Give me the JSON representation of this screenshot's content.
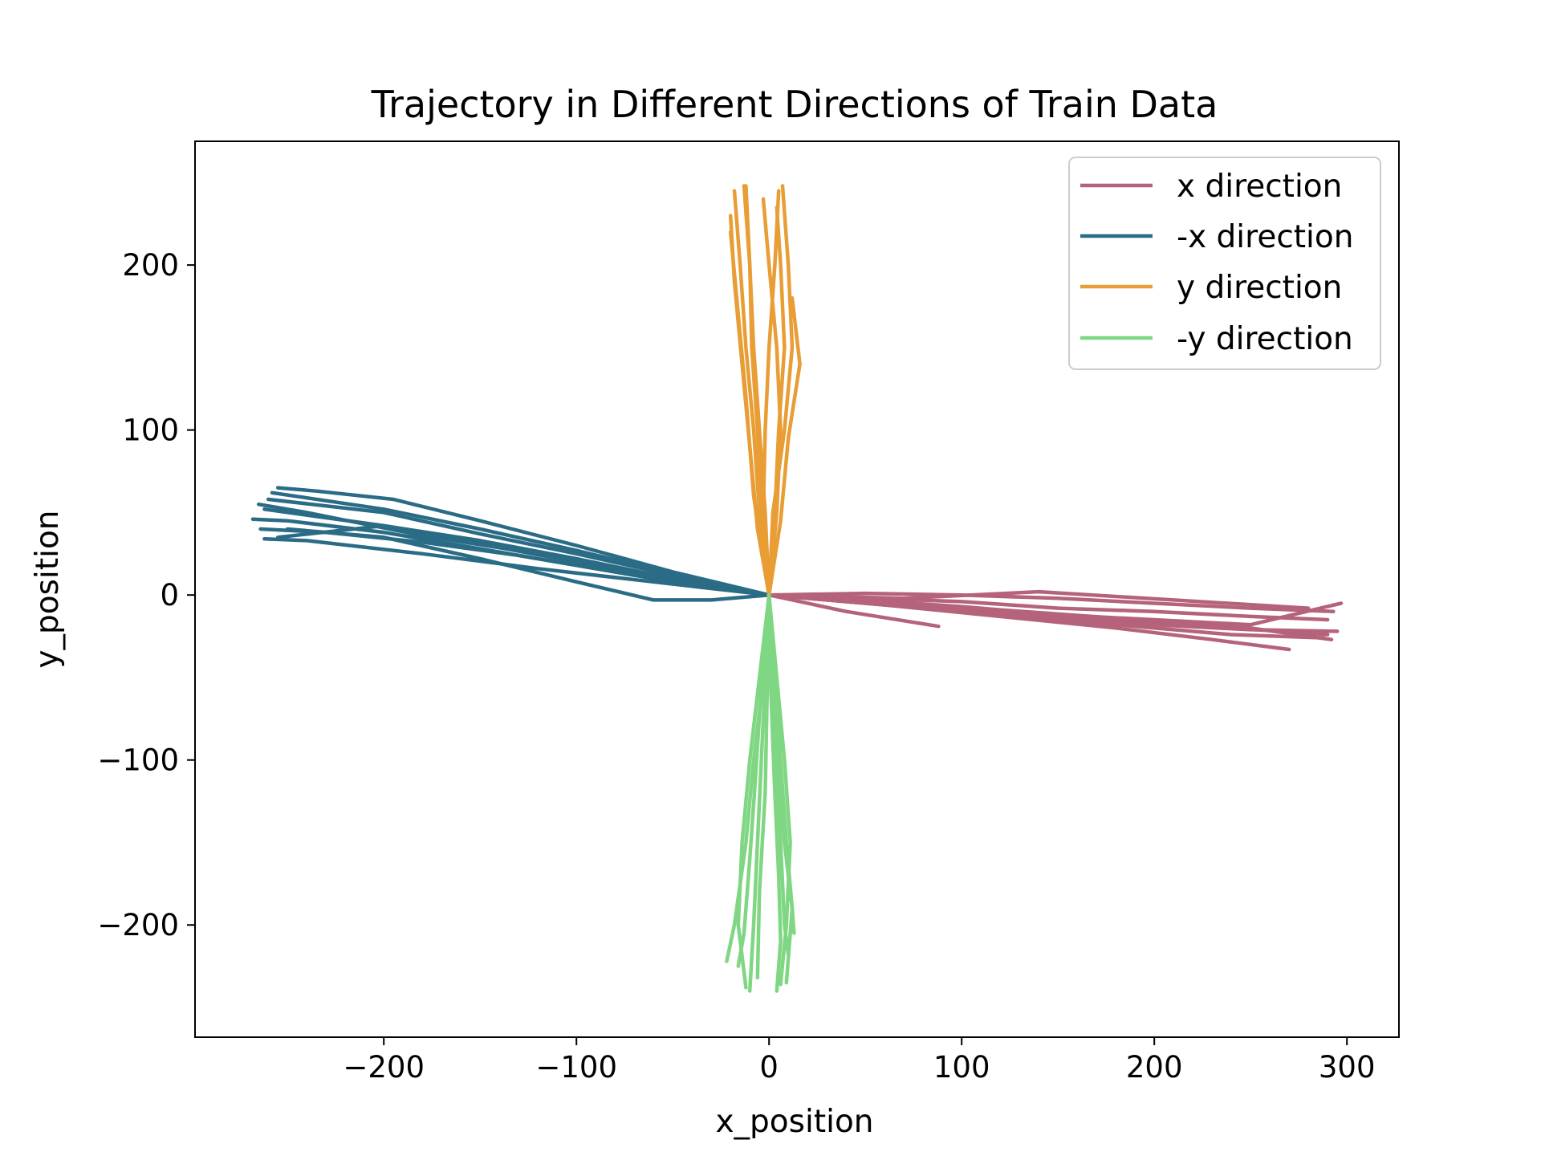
{
  "chart_data": {
    "type": "line",
    "title": "Trajectory in Different Directions of Train Data",
    "xlabel": "x_position",
    "ylabel": "y_position",
    "xlim": [
      -298,
      327
    ],
    "ylim": [
      -268,
      275
    ],
    "xticks": [
      -200,
      -100,
      0,
      100,
      200,
      300
    ],
    "yticks": [
      -200,
      -100,
      0,
      100,
      200
    ],
    "xtick_labels": [
      "−200",
      "−100",
      "0",
      "100",
      "200",
      "300"
    ],
    "ytick_labels": [
      "−200",
      "−100",
      "0",
      "100",
      "200"
    ],
    "grid": false,
    "legend_position": "top-right",
    "series": [
      {
        "name": "x direction",
        "color": "#b5637a",
        "trajectories": [
          {
            "x": [
              0,
              50,
              100,
              150,
              200,
              250,
              297
            ],
            "y": [
              0,
              -3,
              -7,
              -12,
              -15,
              -18,
              -5
            ]
          },
          {
            "x": [
              0,
              50,
              100,
              150,
              200,
              250,
              295
            ],
            "y": [
              0,
              -5,
              -10,
              -14,
              -18,
              -21,
              -22
            ]
          },
          {
            "x": [
              0,
              50,
              100,
              150,
              200,
              250,
              292
            ],
            "y": [
              0,
              -4,
              -8,
              -13,
              -17,
              -20,
              -27
            ]
          },
          {
            "x": [
              0,
              60,
              120,
              180,
              240,
              288
            ],
            "y": [
              0,
              -6,
              -12,
              -18,
              -24,
              -26
            ]
          },
          {
            "x": [
              0,
              50,
              100,
              150,
              200,
              250,
              293
            ],
            "y": [
              0,
              1,
              0,
              -2,
              -5,
              -8,
              -10
            ]
          },
          {
            "x": [
              0,
              60,
              120,
              180,
              230,
              270
            ],
            "y": [
              0,
              -6,
              -13,
              -20,
              -27,
              -33
            ]
          },
          {
            "x": [
              0,
              40,
              88
            ],
            "y": [
              0,
              -10,
              -19
            ]
          },
          {
            "x": [
              0,
              50,
              100,
              150,
              200,
              250,
              290
            ],
            "y": [
              0,
              -2,
              -4,
              -8,
              -10,
              -13,
              -15
            ]
          },
          {
            "x": [
              0,
              70,
              140,
              210,
              280
            ],
            "y": [
              0,
              -2,
              2,
              -3,
              -8
            ]
          },
          {
            "x": [
              0,
              60,
              120,
              180,
              240,
              290
            ],
            "y": [
              0,
              -4,
              -9,
              -14,
              -20,
              -24
            ]
          }
        ]
      },
      {
        "name": "-x direction",
        "color": "#2a6b85",
        "trajectories": [
          {
            "x": [
              0,
              -50,
              -100,
              -150,
              -200,
              -250,
              -268
            ],
            "y": [
              0,
              8,
              18,
              28,
              38,
              45,
              46
            ]
          },
          {
            "x": [
              0,
              -50,
              -100,
              -150,
              -200,
              -255
            ],
            "y": [
              0,
              10,
              22,
              33,
              42,
              35
            ]
          },
          {
            "x": [
              0,
              -50,
              -100,
              -150,
              -200,
              -260
            ],
            "y": [
              0,
              12,
              25,
              37,
              50,
              58
            ]
          },
          {
            "x": [
              0,
              -50,
              -100,
              -150,
              -195,
              -235,
              -255
            ],
            "y": [
              0,
              14,
              30,
              45,
              58,
              63,
              65
            ]
          },
          {
            "x": [
              0,
              -30,
              -60,
              -100,
              -150,
              -200,
              -250
            ],
            "y": [
              0,
              -3,
              -3,
              8,
              22,
              35,
              40
            ]
          },
          {
            "x": [
              0,
              -50,
              -100,
              -150,
              -200,
              -262
            ],
            "y": [
              0,
              9,
              20,
              31,
              42,
              52
            ]
          },
          {
            "x": [
              0,
              -60,
              -120,
              -180,
              -240,
              -265
            ],
            "y": [
              0,
              12,
              25,
              36,
              50,
              55
            ]
          },
          {
            "x": [
              0,
              -40,
              -80,
              -130,
              -180,
              -230,
              -264
            ],
            "y": [
              0,
              6,
              14,
              24,
              32,
              38,
              40
            ]
          },
          {
            "x": [
              0,
              -50,
              -100,
              -150,
              -200,
              -258
            ],
            "y": [
              0,
              13,
              27,
              40,
              52,
              62
            ]
          },
          {
            "x": [
              0,
              -60,
              -120,
              -180,
              -240,
              -262
            ],
            "y": [
              0,
              8,
              16,
              25,
              33,
              34
            ]
          }
        ]
      },
      {
        "name": "y direction",
        "color": "#e89d35",
        "trajectories": [
          {
            "x": [
              0,
              -5,
              -8,
              -12,
              -15,
              -18
            ],
            "y": [
              0,
              50,
              100,
              150,
              200,
              245
            ]
          },
          {
            "x": [
              0,
              -3,
              -2,
              0,
              3,
              5
            ],
            "y": [
              0,
              50,
              100,
              150,
              200,
              245
            ]
          },
          {
            "x": [
              0,
              3,
              5,
              8,
              6,
              4
            ],
            "y": [
              0,
              50,
              100,
              150,
              200,
              235
            ]
          },
          {
            "x": [
              0,
              2,
              8,
              12,
              10,
              7
            ],
            "y": [
              0,
              50,
              100,
              150,
              200,
              248
            ]
          },
          {
            "x": [
              0,
              -6,
              -10,
              -14,
              -18,
              -20
            ],
            "y": [
              0,
              40,
              90,
              140,
              190,
              230
            ]
          },
          {
            "x": [
              0,
              6,
              10,
              16,
              12
            ],
            "y": [
              0,
              45,
              95,
              140,
              180
            ]
          },
          {
            "x": [
              0,
              -2,
              -5,
              -8,
              -10,
              -13
            ],
            "y": [
              0,
              50,
              100,
              150,
              200,
              248
            ]
          },
          {
            "x": [
              0,
              -8,
              -12,
              -16,
              -20
            ],
            "y": [
              0,
              60,
              120,
              170,
              220
            ]
          },
          {
            "x": [
              0,
              4,
              6,
              4,
              0,
              -3
            ],
            "y": [
              0,
              50,
              100,
              150,
              200,
              240
            ]
          },
          {
            "x": [
              0,
              -4,
              -6,
              -9,
              -10,
              -12
            ],
            "y": [
              0,
              50,
              100,
              150,
              200,
              248
            ]
          }
        ]
      },
      {
        "name": "-y direction",
        "color": "#7fd683",
        "trajectories": [
          {
            "x": [
              0,
              -3,
              -8,
              -12,
              -18,
              -22
            ],
            "y": [
              0,
              -50,
              -100,
              -150,
              -200,
              -222
            ]
          },
          {
            "x": [
              0,
              2,
              5,
              8,
              12,
              9
            ],
            "y": [
              0,
              -50,
              -100,
              -150,
              -190,
              -235
            ]
          },
          {
            "x": [
              0,
              -2,
              -4,
              -6,
              -8,
              -10
            ],
            "y": [
              0,
              -50,
              -100,
              -150,
              -200,
              -240
            ]
          },
          {
            "x": [
              0,
              3,
              6,
              9,
              12,
              13
            ],
            "y": [
              0,
              -50,
              -100,
              -150,
              -190,
              -205
            ]
          },
          {
            "x": [
              0,
              -5,
              -10,
              -14,
              -16,
              -12
            ],
            "y": [
              0,
              -50,
              -100,
              -150,
              -200,
              -238
            ]
          },
          {
            "x": [
              0,
              1,
              3,
              5,
              6,
              4
            ],
            "y": [
              0,
              -60,
              -120,
              -170,
              -210,
              -240
            ]
          },
          {
            "x": [
              0,
              -4,
              -7,
              -10,
              -13,
              -16
            ],
            "y": [
              0,
              -55,
              -110,
              -160,
              -205,
              -225
            ]
          },
          {
            "x": [
              0,
              4,
              8,
              11,
              9,
              6
            ],
            "y": [
              0,
              -50,
              -100,
              -150,
              -200,
              -236
            ]
          },
          {
            "x": [
              0,
              -1,
              -2,
              -5,
              -6
            ],
            "y": [
              0,
              -60,
              -120,
              -180,
              -232
            ]
          },
          {
            "x": [
              0,
              2,
              4,
              6,
              8,
              10
            ],
            "y": [
              0,
              -50,
              -100,
              -150,
              -200,
              -218
            ]
          }
        ]
      }
    ]
  }
}
